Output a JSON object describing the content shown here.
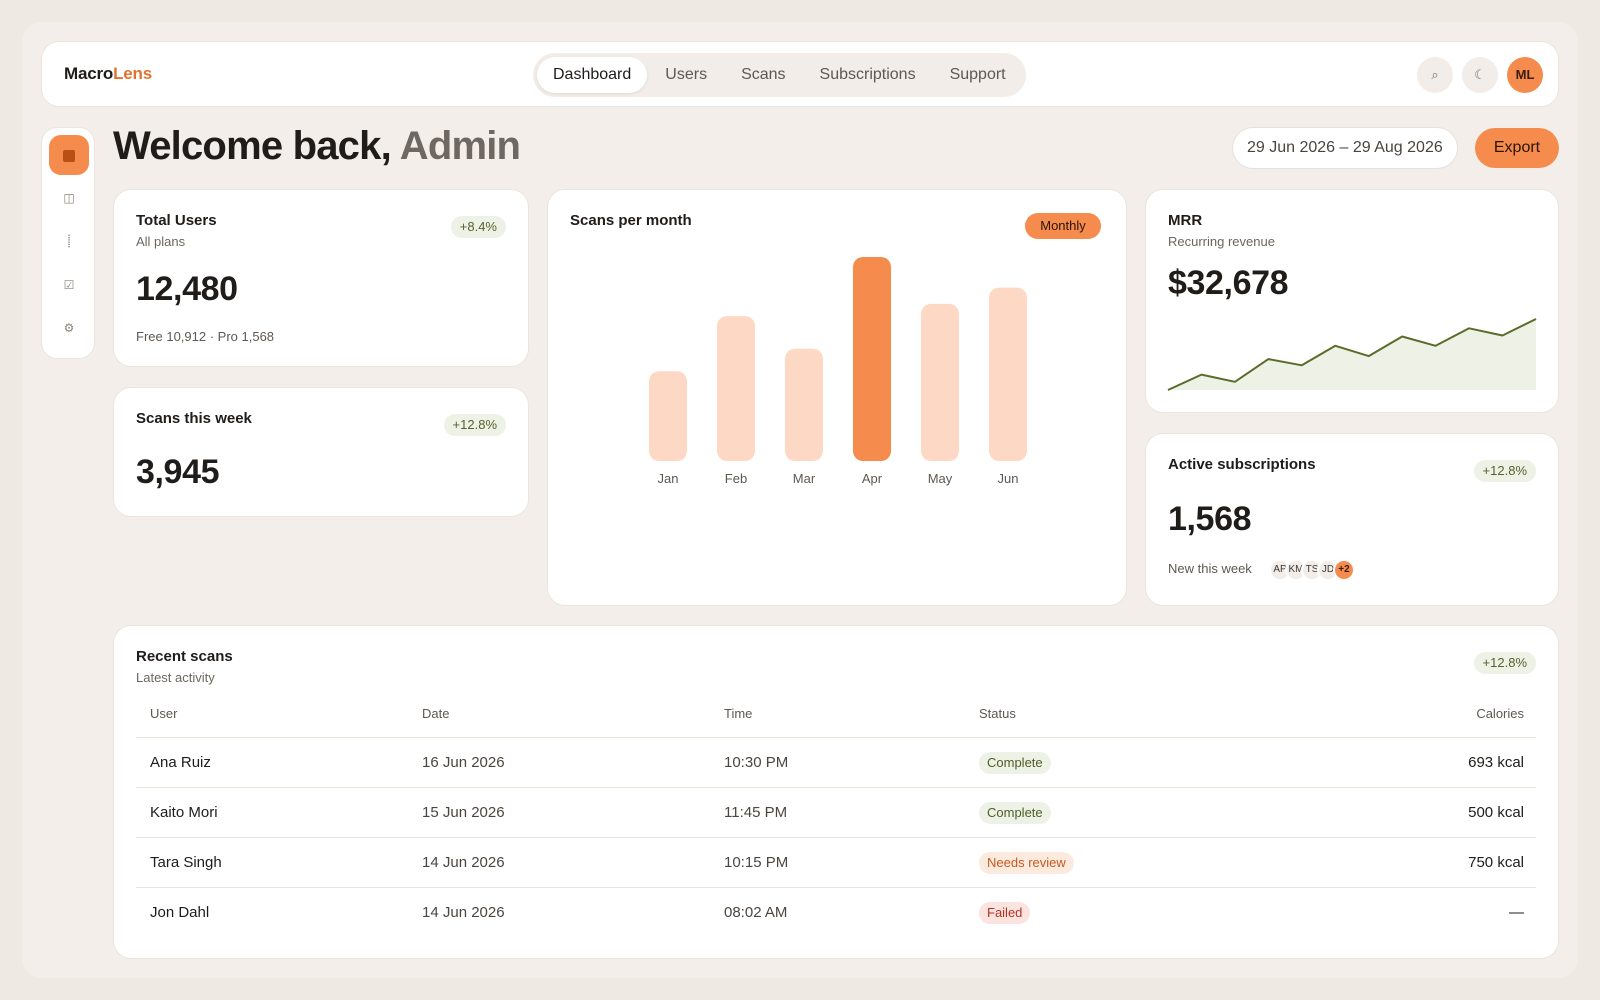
{
  "app": {
    "logo_a": "Macro",
    "logo_b": "Lens"
  },
  "nav": {
    "tabs": [
      "Dashboard",
      "Users",
      "Scans",
      "Subscriptions",
      "Support"
    ],
    "active": "Dashboard",
    "search_icon": "⌕",
    "theme_icon": "☾",
    "avatar": "ML"
  },
  "header": {
    "welcome": "Welcome back,",
    "name": "Admin",
    "date_range": "29 Jun 2026 – 29 Aug 2026",
    "export": "Export"
  },
  "sidebar": {
    "icons": [
      "home-icon",
      "layout-icon",
      "thermometer-icon",
      "checkbox-icon",
      "gear-icon"
    ],
    "glyphs": [
      "",
      "◫",
      "⸽",
      "☑",
      "⚙"
    ]
  },
  "total_users": {
    "title": "Total Users",
    "sub": "All plans",
    "delta": "+8.4%",
    "value": "12,480",
    "note": "Free 10,912 · Pro 1,568"
  },
  "scans_week": {
    "title": "Scans this week",
    "delta": "+12.8%",
    "value": "3,945"
  },
  "scans_month": {
    "title": "Scans per month",
    "toggle": "Monthly"
  },
  "mrr": {
    "title": "MRR",
    "sub": "Recurring revenue",
    "value": "$32,678"
  },
  "active_subs": {
    "title": "Active subscriptions",
    "delta": "+12.8%",
    "value": "1,568",
    "note": "New this week",
    "avatars": [
      "AP",
      "KM",
      "TS",
      "JD"
    ],
    "more": "+2"
  },
  "recent": {
    "title": "Recent scans",
    "sub": "Latest activity",
    "delta": "+12.8%",
    "columns": [
      "User",
      "Date",
      "Time",
      "Status",
      "Calories"
    ],
    "rows": [
      {
        "user": "Ana Ruiz",
        "date": "16 Jun 2026",
        "time": "10:30 PM",
        "status": "Complete",
        "calories": "693 kcal"
      },
      {
        "user": "Kaito Mori",
        "date": "15 Jun 2026",
        "time": "11:45 PM",
        "status": "Complete",
        "calories": "500 kcal"
      },
      {
        "user": "Tara Singh",
        "date": "14 Jun 2026",
        "time": "10:15 PM",
        "status": "Needs review",
        "calories": "750 kcal"
      },
      {
        "user": "Jon Dahl",
        "date": "14 Jun 2026",
        "time": "08:02 AM",
        "status": "Failed",
        "calories": "—"
      }
    ]
  },
  "colors": {
    "accent": "#f58c4e",
    "bar_light": "#fdd8c4",
    "bar_highlight": "#f58c4e",
    "line": "#5c6b2a",
    "area": "#eef1e6"
  },
  "chart_data": [
    {
      "type": "bar",
      "categories": [
        "Jan",
        "Feb",
        "Mar",
        "Apr",
        "May",
        "Jun"
      ],
      "values": [
        44,
        71,
        55,
        100,
        77,
        85
      ],
      "highlight": "Apr",
      "ylim": [
        0,
        100
      ],
      "grid": false
    },
    {
      "type": "area",
      "values": [
        0,
        15,
        8,
        30,
        24,
        43,
        33,
        52,
        43,
        60,
        53,
        69
      ],
      "ylim": [
        0,
        70
      ],
      "grid": false
    }
  ]
}
